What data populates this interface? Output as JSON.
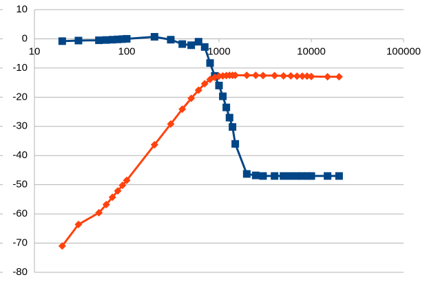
{
  "chart_data": {
    "type": "line",
    "xscale": "log",
    "grid": true,
    "x": [
      20,
      30,
      50,
      60,
      70,
      80,
      90,
      100,
      200,
      300,
      400,
      500,
      600,
      700,
      800,
      900,
      1000,
      1100,
      1200,
      1300,
      1400,
      1500,
      2000,
      2500,
      3000,
      4000,
      5000,
      6000,
      7000,
      8000,
      9000,
      10000,
      15000,
      20000
    ],
    "series": [
      {
        "color": "#004586",
        "marker": "square",
        "values": [
          -0.8,
          -0.6,
          -0.5,
          -0.4,
          -0.3,
          -0.2,
          -0.1,
          0,
          0.7,
          -0.3,
          -1.8,
          -2.2,
          -1.0,
          -2.8,
          -8.3,
          -12.7,
          -16,
          -19.7,
          -23.5,
          -27,
          -30.2,
          -36,
          -46.3,
          -46.8,
          -47,
          -47,
          -47,
          -47,
          -47,
          -47,
          -47,
          -47,
          -47,
          -47
        ]
      },
      {
        "color": "#ff420e",
        "marker": "diamond",
        "values": [
          -71,
          -63.6,
          -59.6,
          -56.8,
          -54.3,
          -52.1,
          -50.2,
          -48.5,
          -36.3,
          -29.2,
          -24.1,
          -20.4,
          -17.6,
          -15.4,
          -13.9,
          -13.2,
          -12.8,
          -12.7,
          -12.6,
          -12.5,
          -12.5,
          -12.5,
          -12.5,
          -12.5,
          -12.6,
          -12.6,
          -12.7,
          -12.7,
          -12.8,
          -12.8,
          -12.8,
          -12.9,
          -13,
          -13
        ]
      }
    ],
    "xlim": [
      10,
      100000
    ],
    "xticks": [
      10,
      100,
      1000,
      10000,
      100000
    ],
    "ylim": [
      -80,
      10
    ],
    "yticks": [
      -80,
      -70,
      -60,
      -50,
      -40,
      -30,
      -20,
      -10,
      0,
      10
    ]
  }
}
